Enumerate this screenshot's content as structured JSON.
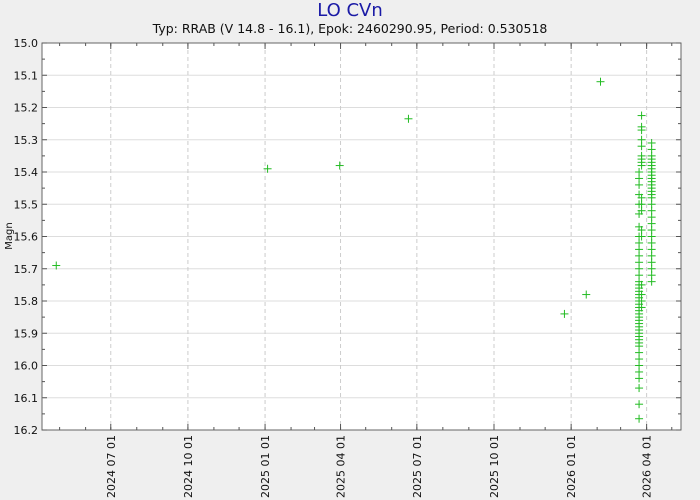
{
  "chart_data": {
    "type": "scatter",
    "title": "LO CVn",
    "subtitle": "Typ: RRAB (V 14.8 - 16.1), Epok: 2460290.95, Period: 0.530518",
    "xlabel": "",
    "ylabel": "Magn",
    "x_type": "date",
    "xlim": [
      "2024-04-10",
      "2026-05-12"
    ],
    "ylim": [
      15.0,
      16.2
    ],
    "y_inverted": true,
    "grid": true,
    "x_ticks": [
      "2024 07 01",
      "2024 10 01",
      "2025 01 01",
      "2025 04 01",
      "2025 07 01",
      "2025 10 01",
      "2026 01 01",
      "2026 04 01"
    ],
    "y_ticks": [
      "15.0",
      "15.1",
      "15.2",
      "15.3",
      "15.4",
      "15.5",
      "15.6",
      "15.7",
      "15.8",
      "15.9",
      "16.0",
      "16.1",
      "16.2"
    ],
    "marker_color": "#22bb22",
    "points": [
      {
        "date": "2024-04-27",
        "mag": 15.69
      },
      {
        "date": "2025-01-04",
        "mag": 15.39
      },
      {
        "date": "2025-03-31",
        "mag": 15.38
      },
      {
        "date": "2025-06-21",
        "mag": 15.235
      },
      {
        "date": "2025-12-24",
        "mag": 15.84
      },
      {
        "date": "2026-01-19",
        "mag": 15.78
      },
      {
        "date": "2026-02-05",
        "mag": 15.12
      }
    ],
    "clusters": [
      {
        "date": "2026-03-23",
        "mags": [
          15.4,
          15.42,
          15.44,
          15.47,
          15.5,
          15.53,
          15.57,
          15.6,
          15.62,
          15.64,
          15.66,
          15.68,
          15.7,
          15.72,
          15.74,
          15.75,
          15.76,
          15.77,
          15.78,
          15.79,
          15.8,
          15.81,
          15.82,
          15.83,
          15.84,
          15.85,
          15.86,
          15.87,
          15.88,
          15.89,
          15.9,
          15.91,
          15.92,
          15.93,
          15.94,
          15.96,
          15.98,
          16.0,
          16.02,
          16.04,
          16.07,
          16.12,
          16.165
        ]
      },
      {
        "date": "2026-03-26",
        "mags": [
          15.225,
          15.26,
          15.27,
          15.3,
          15.32,
          15.35,
          15.36,
          15.37,
          15.38,
          15.48,
          15.5,
          15.52,
          15.58,
          15.6,
          15.75,
          15.78,
          15.8,
          15.82
        ]
      },
      {
        "date": "2026-04-07",
        "mags": [
          15.31,
          15.33,
          15.35,
          15.36,
          15.37,
          15.38,
          15.39,
          15.4,
          15.41,
          15.42,
          15.43,
          15.44,
          15.45,
          15.46,
          15.47,
          15.48,
          15.5,
          15.52,
          15.54,
          15.56,
          15.58,
          15.6,
          15.62,
          15.64,
          15.66,
          15.68,
          15.7,
          15.72,
          15.74
        ]
      }
    ]
  }
}
